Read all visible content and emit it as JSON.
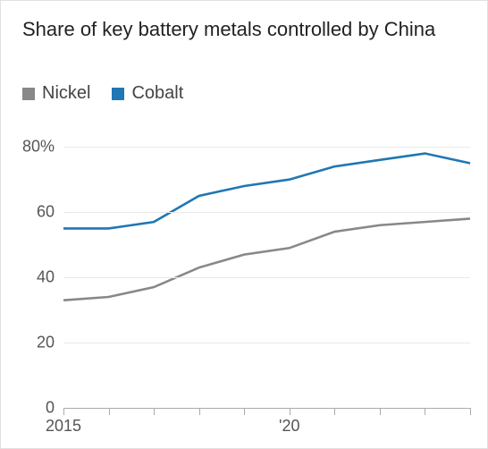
{
  "chart": {
    "type": "line",
    "title": "Share of key battery metals controlled by China",
    "title_fontsize": 22,
    "title_color": "#222222",
    "background_color": "#ffffff",
    "border_color": "#e0e0e0",
    "grid_color": "#e9e9e9",
    "baseline_color": "#aaaaaa",
    "tick_color": "#aaaaaa",
    "axis_label_color": "#555555",
    "axis_label_fontsize": 18,
    "line_width": 2.6,
    "x": {
      "min": 2015,
      "max": 2024,
      "ticks": [
        2015,
        2016,
        2017,
        2018,
        2019,
        2020,
        2021,
        2022,
        2023,
        2024
      ],
      "labels": [
        {
          "value": 2015,
          "text": "2015"
        },
        {
          "value": 2020,
          "text": "'20"
        }
      ]
    },
    "y": {
      "min": 0,
      "max": 85,
      "ticks": [
        {
          "value": 0,
          "label": "0"
        },
        {
          "value": 20,
          "label": "20"
        },
        {
          "value": 40,
          "label": "40"
        },
        {
          "value": 60,
          "label": "60"
        },
        {
          "value": 80,
          "label": "80%"
        }
      ]
    },
    "legend": [
      {
        "label": "Nickel",
        "color": "#888888"
      },
      {
        "label": "Cobalt",
        "color": "#1f77b4"
      }
    ],
    "series": [
      {
        "name": "Cobalt",
        "color": "#1f77b4",
        "x": [
          2015,
          2016,
          2017,
          2018,
          2019,
          2020,
          2021,
          2022,
          2023,
          2024
        ],
        "y": [
          55,
          55,
          57,
          65,
          68,
          70,
          74,
          76,
          78,
          75
        ]
      },
      {
        "name": "Nickel",
        "color": "#888888",
        "x": [
          2015,
          2016,
          2017,
          2018,
          2019,
          2020,
          2021,
          2022,
          2023,
          2024
        ],
        "y": [
          33,
          34,
          37,
          43,
          47,
          49,
          54,
          56,
          57,
          58
        ]
      }
    ]
  }
}
